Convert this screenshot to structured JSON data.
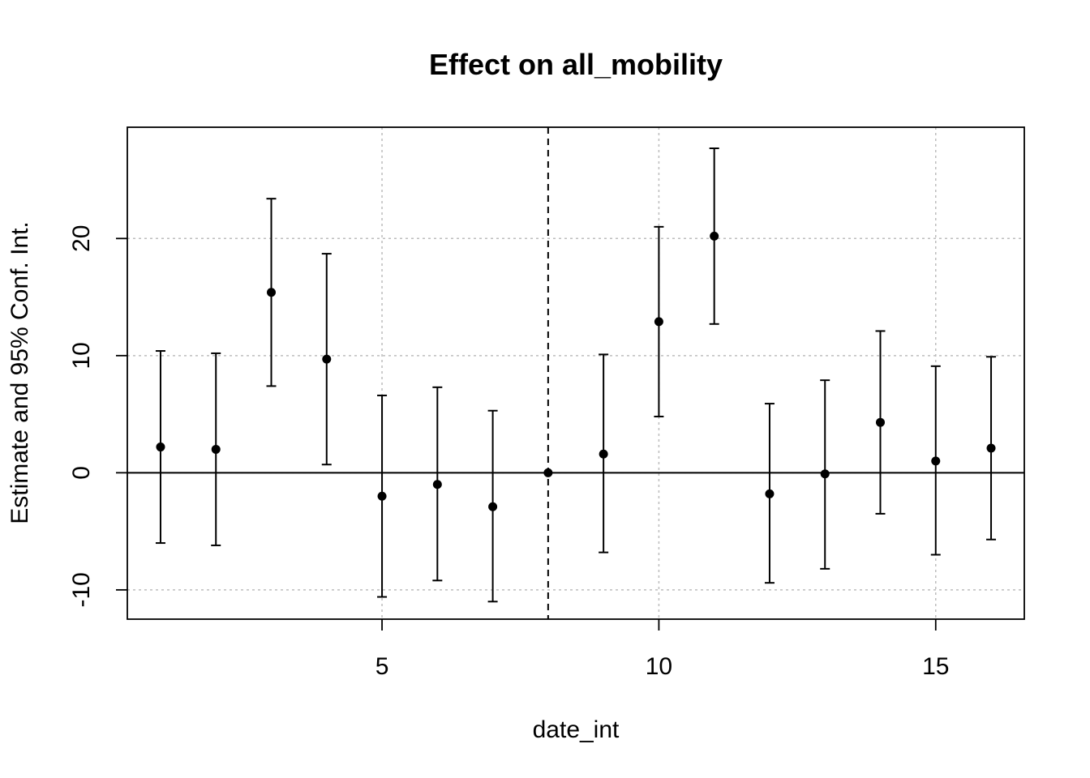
{
  "chart_data": {
    "type": "scatter",
    "title": "Effect on all_mobility",
    "xlabel": "date_int",
    "ylabel": "Estimate and 95% Conf. Int.",
    "xlim": [
      0.4,
      16.6
    ],
    "ylim": [
      -12.5,
      29.5
    ],
    "xticks": [
      5,
      10,
      15
    ],
    "yticks": [
      -10,
      0,
      10,
      20
    ],
    "grid": true,
    "reference_hline": 0,
    "reference_vline": 8,
    "points": [
      {
        "x": 1,
        "estimate": 2.2,
        "lower": -6.0,
        "upper": 10.4
      },
      {
        "x": 2,
        "estimate": 2.0,
        "lower": -6.2,
        "upper": 10.2
      },
      {
        "x": 3,
        "estimate": 15.4,
        "lower": 7.4,
        "upper": 23.4
      },
      {
        "x": 4,
        "estimate": 9.7,
        "lower": 0.7,
        "upper": 18.7
      },
      {
        "x": 5,
        "estimate": -2.0,
        "lower": -10.6,
        "upper": 6.6
      },
      {
        "x": 6,
        "estimate": -1.0,
        "lower": -9.2,
        "upper": 7.3
      },
      {
        "x": 7,
        "estimate": -2.9,
        "lower": -11.0,
        "upper": 5.3
      },
      {
        "x": 8,
        "estimate": 0.0,
        "lower": 0.0,
        "upper": 0.0
      },
      {
        "x": 9,
        "estimate": 1.6,
        "lower": -6.8,
        "upper": 10.1
      },
      {
        "x": 10,
        "estimate": 12.9,
        "lower": 4.8,
        "upper": 21.0
      },
      {
        "x": 11,
        "estimate": 20.2,
        "lower": 12.7,
        "upper": 27.7
      },
      {
        "x": 12,
        "estimate": -1.8,
        "lower": -9.4,
        "upper": 5.9
      },
      {
        "x": 13,
        "estimate": -0.1,
        "lower": -8.2,
        "upper": 7.9
      },
      {
        "x": 14,
        "estimate": 4.3,
        "lower": -3.5,
        "upper": 12.1
      },
      {
        "x": 15,
        "estimate": 1.0,
        "lower": -7.0,
        "upper": 9.1
      },
      {
        "x": 16,
        "estimate": 2.1,
        "lower": -5.7,
        "upper": 9.9
      }
    ]
  }
}
